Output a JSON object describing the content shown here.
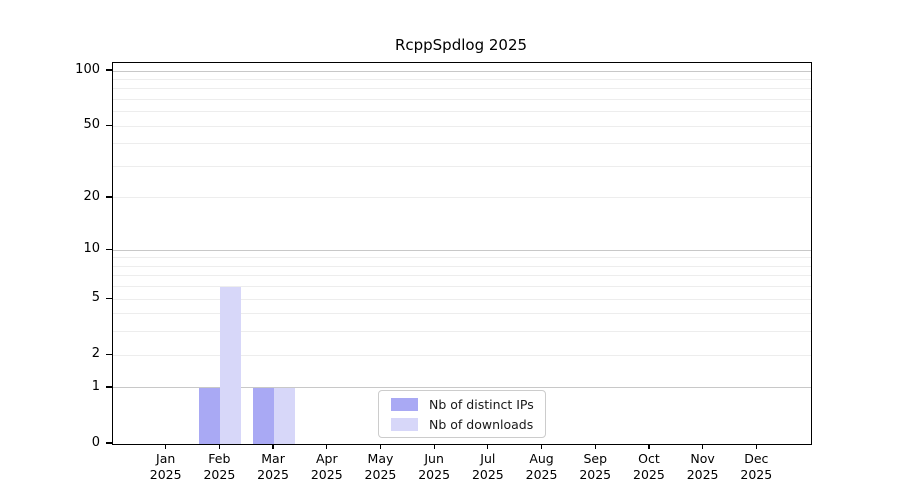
{
  "chart_data": {
    "type": "bar",
    "title": "RcppSpdlog 2025",
    "categories": [
      "Jan",
      "Feb",
      "Mar",
      "Apr",
      "May",
      "Jun",
      "Jul",
      "Aug",
      "Sep",
      "Oct",
      "Nov",
      "Dec"
    ],
    "category_year": "2025",
    "series": [
      {
        "name": "Nb of distinct IPs",
        "color": "#a9a9f4",
        "values": [
          0,
          1,
          1,
          0,
          0,
          0,
          0,
          0,
          0,
          0,
          0,
          0
        ]
      },
      {
        "name": "Nb of downloads",
        "color": "#d7d7f9",
        "values": [
          0,
          6,
          1,
          0,
          0,
          0,
          0,
          0,
          0,
          0,
          0,
          0
        ]
      }
    ],
    "yscale": "log1p",
    "y_ticks": [
      0,
      1,
      2,
      5,
      10,
      20,
      50,
      100
    ],
    "ylim": [
      0,
      100
    ],
    "grid": true,
    "legend_position": "lower center",
    "colors": {
      "major_grid": "#c8c8c8",
      "minor_grid": "#ededed",
      "axis": "#000000",
      "background": "#ffffff"
    }
  }
}
